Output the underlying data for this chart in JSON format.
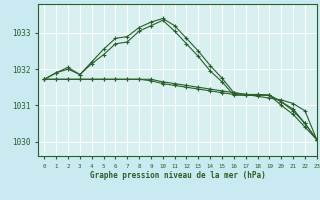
{
  "title": "Graphe pression niveau de la mer (hPa)",
  "background_color": "#c8eaf0",
  "plot_bg_color": "#d8f0f0",
  "grid_color": "#b8dce0",
  "line_color": "#2a5e2a",
  "xlim": [
    -0.5,
    23
  ],
  "ylim": [
    1029.6,
    1033.8
  ],
  "yticks": [
    1030,
    1031,
    1032,
    1033
  ],
  "xticks": [
    0,
    1,
    2,
    3,
    4,
    5,
    6,
    7,
    8,
    9,
    10,
    11,
    12,
    13,
    14,
    15,
    16,
    17,
    18,
    19,
    20,
    21,
    22,
    23
  ],
  "series": [
    {
      "x": [
        0,
        1,
        2,
        3,
        4,
        5,
        6,
        7,
        8,
        9,
        10,
        11,
        12,
        13,
        14,
        15,
        16,
        17,
        18,
        19,
        20,
        21,
        22,
        23
      ],
      "y": [
        1031.72,
        1031.72,
        1031.72,
        1031.72,
        1031.72,
        1031.72,
        1031.72,
        1031.72,
        1031.72,
        1031.72,
        1031.65,
        1031.6,
        1031.55,
        1031.5,
        1031.45,
        1031.4,
        1031.35,
        1031.3,
        1031.25,
        1031.2,
        1031.15,
        1031.05,
        1030.85,
        1030.05
      ]
    },
    {
      "x": [
        0,
        1,
        2,
        3,
        4,
        5,
        6,
        7,
        8,
        9,
        10,
        11,
        12,
        13,
        14,
        15,
        16,
        17,
        18,
        19,
        20,
        21,
        22,
        23
      ],
      "y": [
        1031.72,
        1031.72,
        1031.72,
        1031.72,
        1031.72,
        1031.72,
        1031.72,
        1031.72,
        1031.72,
        1031.68,
        1031.6,
        1031.55,
        1031.5,
        1031.45,
        1031.4,
        1031.35,
        1031.3,
        1031.28,
        1031.28,
        1031.28,
        1031.1,
        1030.9,
        1030.5,
        1030.05
      ]
    },
    {
      "x": [
        0,
        1,
        2,
        3,
        4,
        5,
        6,
        7,
        8,
        9,
        10,
        11,
        12,
        13,
        14,
        15,
        16,
        17,
        18,
        19,
        20,
        21,
        22,
        23
      ],
      "y": [
        1031.72,
        1031.9,
        1032.05,
        1031.85,
        1032.2,
        1032.55,
        1032.85,
        1032.9,
        1033.15,
        1033.3,
        1033.4,
        1033.2,
        1032.85,
        1032.5,
        1032.1,
        1031.75,
        1031.35,
        1031.3,
        1031.3,
        1031.28,
        1031.1,
        1030.85,
        1030.5,
        1030.05
      ]
    },
    {
      "x": [
        0,
        1,
        2,
        3,
        4,
        5,
        6,
        7,
        8,
        9,
        10,
        11,
        12,
        13,
        14,
        15,
        16,
        17,
        18,
        19,
        20,
        21,
        22,
        23
      ],
      "y": [
        1031.72,
        1031.9,
        1032.0,
        1031.85,
        1032.15,
        1032.4,
        1032.7,
        1032.75,
        1033.05,
        1033.2,
        1033.35,
        1033.05,
        1032.7,
        1032.35,
        1031.95,
        1031.65,
        1031.28,
        1031.28,
        1031.28,
        1031.28,
        1031.0,
        1030.75,
        1030.4,
        1030.05
      ]
    }
  ]
}
